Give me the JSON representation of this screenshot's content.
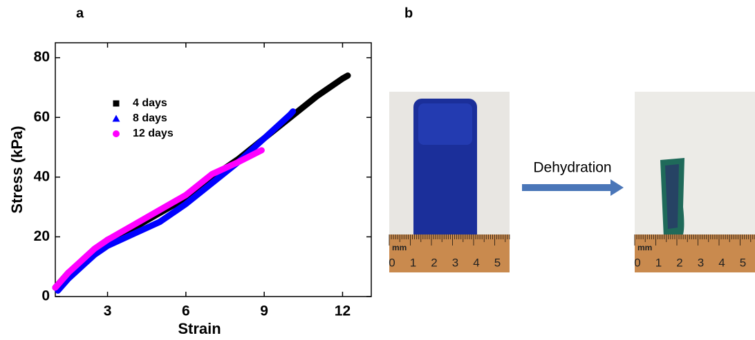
{
  "panel_labels": [
    "a",
    "b"
  ],
  "chart_data": {
    "type": "scatter",
    "xlabel": "Strain",
    "ylabel": "Stress (kPa)",
    "xlim": [
      1,
      13.1
    ],
    "ylim": [
      0,
      85
    ],
    "xticks": [
      3,
      6,
      9,
      12
    ],
    "yticks": [
      0,
      20,
      40,
      60,
      80
    ],
    "series": [
      {
        "name": "4 days",
        "color": "#000000",
        "marker": "square",
        "x": [
          1,
          1.5,
          2,
          2.5,
          3,
          4,
          5,
          6,
          7,
          8,
          9,
          10,
          11,
          12,
          12.2
        ],
        "values": [
          3,
          8,
          11,
          15,
          19,
          23,
          28,
          33,
          40,
          46,
          53,
          60,
          67,
          73,
          74
        ]
      },
      {
        "name": "8 days",
        "color": "#0000ff",
        "marker": "triangle",
        "x": [
          1.1,
          1.5,
          2,
          2.5,
          3,
          4,
          5,
          6,
          7,
          8,
          9,
          10,
          10.1
        ],
        "values": [
          2,
          6,
          10,
          14,
          17,
          21,
          25,
          31,
          38,
          45,
          53,
          61,
          62
        ]
      },
      {
        "name": "12 days",
        "color": "#ff00ff",
        "marker": "circle",
        "x": [
          1,
          1.5,
          2,
          2.5,
          3,
          4,
          5,
          6,
          7,
          8,
          8.9
        ],
        "values": [
          3,
          8,
          12,
          16,
          19,
          24,
          29,
          34,
          41,
          45,
          49
        ]
      }
    ]
  },
  "photos": {
    "arrow_label": "Dehydration",
    "ruler_unit": "mm",
    "ruler_labels": [
      "0",
      "1",
      "2",
      "3",
      "4",
      "5"
    ]
  }
}
